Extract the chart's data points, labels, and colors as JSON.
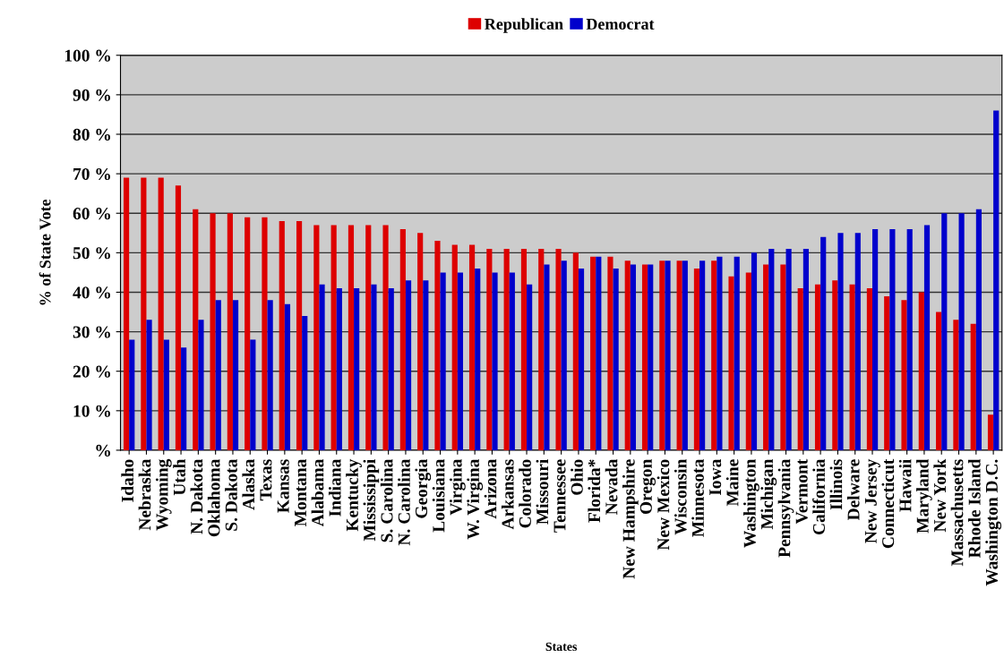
{
  "chart_data": {
    "type": "bar",
    "xlabel": "States",
    "ylabel": "% of State Vote",
    "categories": [
      "Idaho",
      "Nebraska",
      "Wyoming",
      "Utah",
      "N. Dakota",
      "Oklahoma",
      "S. Dakota",
      "Alaska",
      "Texas",
      "Kansas",
      "Montana",
      "Alabama",
      "Indiana",
      "Kentucky",
      "Mississippi",
      "S. Carolina",
      "N. Carolina",
      "Georgia",
      "Louisiana",
      "Virgina",
      "W. Virgina",
      "Arizona",
      "Arkansas",
      "Colorado",
      "Missouri",
      "Tennessee",
      "Ohio",
      "Florida*",
      "Nevada",
      "New Hampshire",
      "Oregon",
      "New Mexico",
      "Wisconsin",
      "Minnesota",
      "Iowa",
      "Maine",
      "Washington",
      "Michigan",
      "Pennsylvania",
      "Vermont",
      "California",
      "Illinois",
      "Delware",
      "New Jersey",
      "Connecticut",
      "Hawaii",
      "Maryland",
      "New York",
      "Massachusetts",
      "Rhode Island",
      "Washington D.C."
    ],
    "series": [
      {
        "name": "Republican",
        "color": "#dd0000",
        "values": [
          69,
          69,
          69,
          67,
          61,
          60,
          60,
          59,
          59,
          58,
          58,
          57,
          57,
          57,
          57,
          57,
          56,
          55,
          53,
          52,
          52,
          51,
          51,
          51,
          51,
          51,
          50,
          49,
          49,
          48,
          47,
          48,
          48,
          46,
          48,
          44,
          45,
          47,
          47,
          41,
          42,
          43,
          42,
          41,
          39,
          38,
          40,
          35,
          33,
          32,
          9
        ]
      },
      {
        "name": "Democrat",
        "color": "#0000cc",
        "values": [
          28,
          33,
          28,
          26,
          33,
          38,
          38,
          28,
          38,
          37,
          34,
          42,
          41,
          41,
          42,
          41,
          43,
          43,
          45,
          45,
          46,
          45,
          45,
          42,
          47,
          48,
          46,
          49,
          46,
          47,
          47,
          48,
          48,
          48,
          49,
          49,
          50,
          51,
          51,
          51,
          54,
          55,
          55,
          56,
          56,
          56,
          57,
          60,
          60,
          61,
          86
        ]
      }
    ],
    "ylim": [
      0,
      100
    ],
    "yticks": [
      {
        "value": 0,
        "label": "%"
      },
      {
        "value": 10,
        "label": "10 %"
      },
      {
        "value": 20,
        "label": "20 %"
      },
      {
        "value": 30,
        "label": "30 %"
      },
      {
        "value": 40,
        "label": "40 %"
      },
      {
        "value": 50,
        "label": "50 %"
      },
      {
        "value": 60,
        "label": "60 %"
      },
      {
        "value": 70,
        "label": "70 %"
      },
      {
        "value": 80,
        "label": "80 %"
      },
      {
        "value": 90,
        "label": "90 %"
      },
      {
        "value": 100,
        "label": "100 %"
      }
    ],
    "grid": "y",
    "legend": "top"
  }
}
